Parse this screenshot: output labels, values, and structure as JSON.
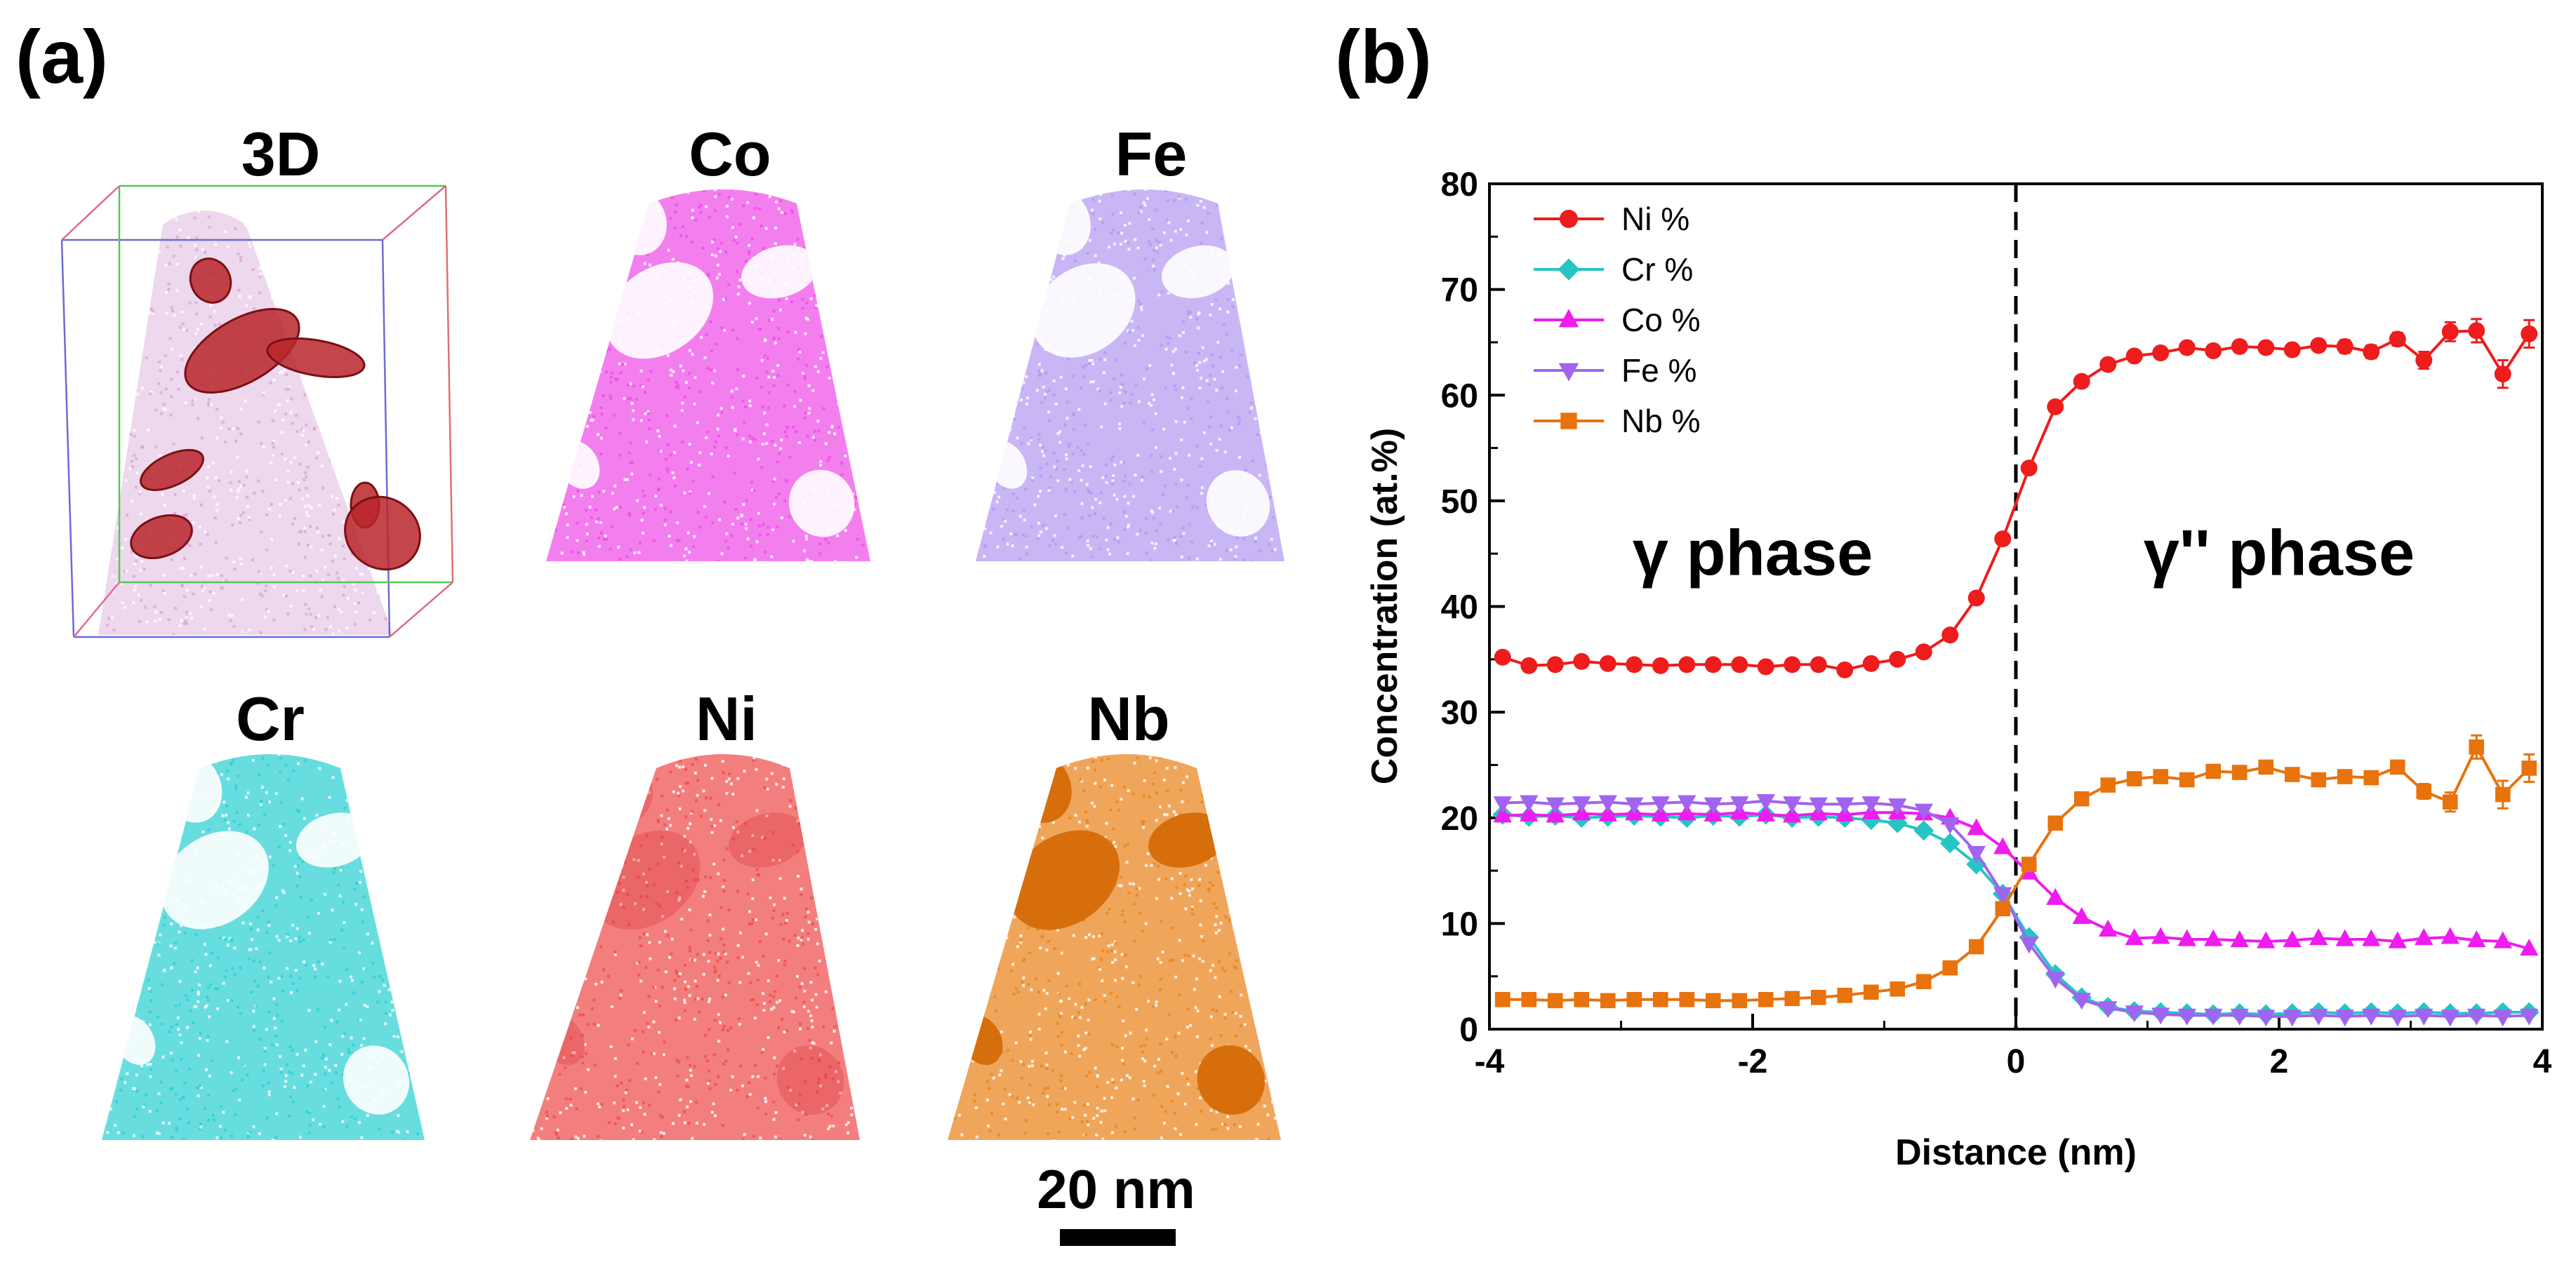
{
  "panel_a": {
    "label": "(a)",
    "maps": [
      {
        "title": "3D",
        "kind": "3d",
        "color": "#d8a8d6"
      },
      {
        "title": "Co",
        "kind": "map",
        "color": "#ee4ee8"
      },
      {
        "title": "Fe",
        "kind": "map",
        "color": "#b49af0"
      },
      {
        "title": "Cr",
        "kind": "map",
        "color": "#2ed0d2"
      },
      {
        "title": "Ni",
        "kind": "map",
        "color": "#ef4c4c"
      },
      {
        "title": "Nb",
        "kind": "map",
        "color": "#e9841c"
      }
    ],
    "isosurface_color": "#b8262a",
    "scale_bar": {
      "label": "20 nm"
    }
  },
  "panel_b": {
    "label": "(b)"
  },
  "chart_data": {
    "type": "line",
    "xlabel": "Distance (nm)",
    "ylabel": "Concentration (at.%)",
    "xlim": [
      -4,
      4
    ],
    "ylim": [
      0,
      80
    ],
    "xticks": [
      -4,
      -2,
      0,
      2,
      4
    ],
    "yticks": [
      0,
      10,
      20,
      30,
      40,
      50,
      60,
      70,
      80
    ],
    "interface_x": 0,
    "legend_position": "top-left",
    "annotations": [
      {
        "text": "γ phase",
        "x": -2.0,
        "y": 43
      },
      {
        "text": "γ'' phase",
        "x": 2.0,
        "y": 43
      }
    ],
    "x": [
      -3.9,
      -3.7,
      -3.5,
      -3.3,
      -3.1,
      -2.9,
      -2.7,
      -2.5,
      -2.3,
      -2.1,
      -1.9,
      -1.7,
      -1.5,
      -1.3,
      -1.1,
      -0.9,
      -0.7,
      -0.5,
      -0.3,
      -0.1,
      0.1,
      0.3,
      0.5,
      0.7,
      0.9,
      1.1,
      1.3,
      1.5,
      1.7,
      1.9,
      2.1,
      2.3,
      2.5,
      2.7,
      2.9,
      3.1,
      3.3,
      3.5,
      3.7,
      3.9
    ],
    "series": [
      {
        "name": "Ni %",
        "color": "#ee1c1c",
        "marker": "circle",
        "values": [
          35.2,
          34.4,
          34.5,
          34.8,
          34.6,
          34.5,
          34.4,
          34.5,
          34.5,
          34.5,
          34.3,
          34.5,
          34.5,
          34.0,
          34.6,
          35.0,
          35.7,
          37.3,
          40.8,
          46.4,
          53.1,
          58.9,
          61.3,
          62.9,
          63.7,
          64.0,
          64.5,
          64.2,
          64.6,
          64.5,
          64.3,
          64.7,
          64.6,
          64.1,
          65.3,
          63.3,
          66.0,
          66.1,
          62.0,
          65.8
        ],
        "errors": [
          0.4,
          0.4,
          0.4,
          0.4,
          0.4,
          0.4,
          0.4,
          0.4,
          0.4,
          0.4,
          0.4,
          0.4,
          0.4,
          0.4,
          0.4,
          0.4,
          0.4,
          0.4,
          0.4,
          0.5,
          0.5,
          0.5,
          0.5,
          0.5,
          0.5,
          0.5,
          0.5,
          0.5,
          0.5,
          0.5,
          0.5,
          0.5,
          0.6,
          0.6,
          0.6,
          0.8,
          0.9,
          1.1,
          1.3,
          1.3
        ]
      },
      {
        "name": "Cr %",
        "color": "#27c4c4",
        "marker": "diamond",
        "values": [
          20.3,
          20.1,
          20.2,
          20.0,
          20.1,
          20.2,
          20.1,
          20.0,
          20.2,
          20.1,
          20.3,
          20.0,
          20.1,
          20.0,
          19.8,
          19.5,
          18.8,
          17.6,
          15.6,
          12.8,
          8.7,
          5.2,
          3.0,
          2.1,
          1.7,
          1.6,
          1.5,
          1.4,
          1.5,
          1.4,
          1.5,
          1.6,
          1.5,
          1.6,
          1.5,
          1.6,
          1.5,
          1.5,
          1.6,
          1.6
        ],
        "errors": []
      },
      {
        "name": "Co %",
        "color": "#ee1cee",
        "marker": "triangle-up",
        "values": [
          20.2,
          20.3,
          20.2,
          20.4,
          20.3,
          20.4,
          20.3,
          20.4,
          20.3,
          20.5,
          20.3,
          20.2,
          20.4,
          20.3,
          20.5,
          20.5,
          20.4,
          20.0,
          19.0,
          17.2,
          14.8,
          12.4,
          10.6,
          9.4,
          8.6,
          8.7,
          8.5,
          8.5,
          8.4,
          8.3,
          8.4,
          8.6,
          8.5,
          8.5,
          8.3,
          8.6,
          8.7,
          8.4,
          8.3,
          7.6
        ],
        "errors": []
      },
      {
        "name": "Fe %",
        "color": "#a064f0",
        "marker": "triangle-down",
        "values": [
          21.4,
          21.5,
          21.3,
          21.4,
          21.5,
          21.3,
          21.4,
          21.5,
          21.3,
          21.4,
          21.6,
          21.4,
          21.3,
          21.3,
          21.4,
          21.2,
          20.7,
          19.4,
          16.7,
          12.8,
          8.1,
          4.8,
          2.8,
          2.0,
          1.6,
          1.4,
          1.3,
          1.3,
          1.3,
          1.2,
          1.2,
          1.3,
          1.2,
          1.3,
          1.2,
          1.3,
          1.2,
          1.3,
          1.2,
          1.3
        ],
        "errors": []
      },
      {
        "name": "Nb %",
        "color": "#e8720c",
        "marker": "square",
        "values": [
          2.8,
          2.8,
          2.7,
          2.8,
          2.7,
          2.8,
          2.8,
          2.8,
          2.7,
          2.7,
          2.8,
          2.9,
          3.0,
          3.2,
          3.5,
          3.8,
          4.5,
          5.8,
          7.8,
          11.4,
          15.6,
          19.5,
          21.8,
          23.1,
          23.7,
          23.9,
          23.6,
          24.4,
          24.3,
          24.8,
          24.1,
          23.6,
          23.9,
          23.8,
          24.8,
          22.5,
          21.5,
          26.7,
          22.2,
          24.7
        ],
        "errors": [
          0.2,
          0.2,
          0.2,
          0.2,
          0.2,
          0.2,
          0.2,
          0.2,
          0.2,
          0.2,
          0.2,
          0.2,
          0.2,
          0.2,
          0.2,
          0.2,
          0.2,
          0.2,
          0.3,
          0.3,
          0.3,
          0.3,
          0.4,
          0.4,
          0.4,
          0.4,
          0.4,
          0.4,
          0.4,
          0.5,
          0.5,
          0.5,
          0.5,
          0.5,
          0.6,
          0.7,
          0.9,
          1.1,
          1.3,
          1.3
        ]
      }
    ]
  }
}
